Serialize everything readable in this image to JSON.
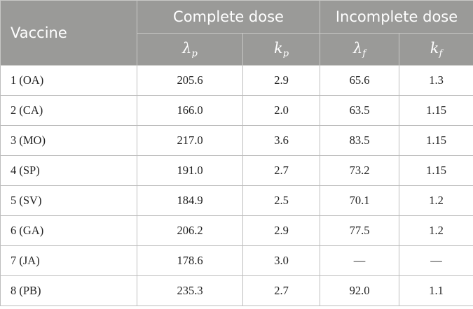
{
  "header": {
    "vaccine": "Vaccine",
    "complete_dose": "Complete dose",
    "incomplete_dose": "Incomplete dose",
    "lambda_p": {
      "sym": "λ",
      "sub": "p"
    },
    "k_p": {
      "sym": "k",
      "sub": "p"
    },
    "lambda_f": {
      "sym": "λ",
      "sub": "f"
    },
    "k_f": {
      "sym": "k",
      "sub": "f"
    }
  },
  "rows": [
    {
      "vaccine": "1 (OA)",
      "lambda_p": "205.6",
      "k_p": "2.9",
      "lambda_f": "65.6",
      "k_f": "1.3"
    },
    {
      "vaccine": "2 (CA)",
      "lambda_p": "166.0",
      "k_p": "2.0",
      "lambda_f": "63.5",
      "k_f": "1.15"
    },
    {
      "vaccine": "3 (MO)",
      "lambda_p": "217.0",
      "k_p": "3.6",
      "lambda_f": "83.5",
      "k_f": "1.15"
    },
    {
      "vaccine": "4 (SP)",
      "lambda_p": "191.0",
      "k_p": "2.7",
      "lambda_f": "73.2",
      "k_f": "1.15"
    },
    {
      "vaccine": "5 (SV)",
      "lambda_p": "184.9",
      "k_p": "2.5",
      "lambda_f": "70.1",
      "k_f": "1.2"
    },
    {
      "vaccine": "6 (GA)",
      "lambda_p": "206.2",
      "k_p": "2.9",
      "lambda_f": "77.5",
      "k_f": "1.2"
    },
    {
      "vaccine": "7 (JA)",
      "lambda_p": "178.6",
      "k_p": "3.0",
      "lambda_f": "—",
      "k_f": "—"
    },
    {
      "vaccine": "8 (PB)",
      "lambda_p": "235.3",
      "k_p": "2.7",
      "lambda_f": "92.0",
      "k_f": "1.1"
    }
  ]
}
